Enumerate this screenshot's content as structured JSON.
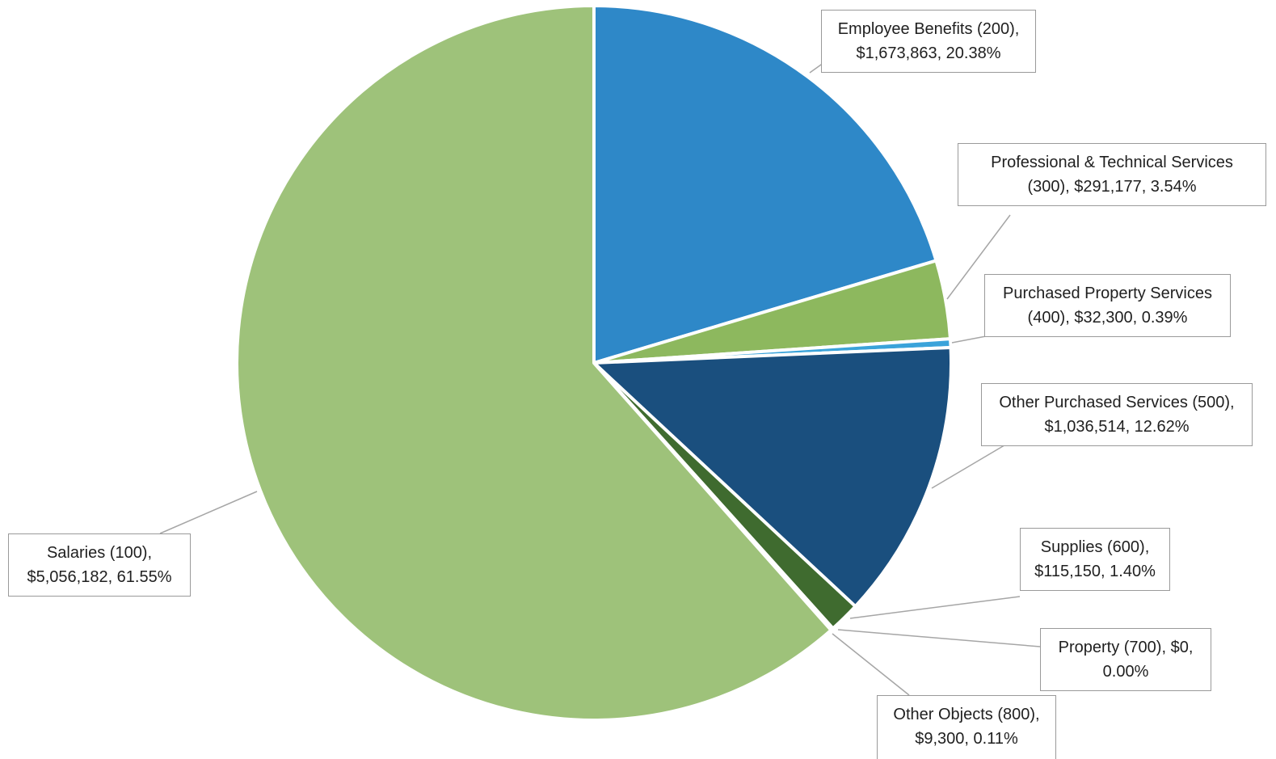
{
  "chart_data": {
    "type": "pie",
    "title": "",
    "slices": [
      {
        "label_line1": "Employee Benefits (200),",
        "label_line2": "$1,673,863, 20.38%",
        "value": 1673863,
        "percent": 20.38,
        "color": "#2e88c8"
      },
      {
        "label_line1": "Professional & Technical Services",
        "label_line2": "(300), $291,177, 3.54%",
        "value": 291177,
        "percent": 3.54,
        "color": "#8db85e"
      },
      {
        "label_line1": "Purchased Property Services",
        "label_line2": "(400), $32,300, 0.39%",
        "value": 32300,
        "percent": 0.39,
        "color": "#3aa3da"
      },
      {
        "label_line1": "Other Purchased Services (500),",
        "label_line2": "$1,036,514, 12.62%",
        "value": 1036514,
        "percent": 12.62,
        "color": "#1a4f7e"
      },
      {
        "label_line1": "Supplies (600),",
        "label_line2": "$115,150, 1.40%",
        "value": 115150,
        "percent": 1.4,
        "color": "#3f6b2f"
      },
      {
        "label_line1": "Property (700), $0,",
        "label_line2": "0.00%",
        "value": 0,
        "percent": 0.0,
        "color": "#2e88c8"
      },
      {
        "label_line1": "Other Objects (800),",
        "label_line2": "$9,300, 0.11%",
        "value": 9300,
        "percent": 0.11,
        "color": "#7fb0d8"
      },
      {
        "label_line1": "Salaries (100),",
        "label_line2": "$5,056,182, 61.55%",
        "value": 5056182,
        "percent": 61.55,
        "color": "#9ec27a"
      }
    ]
  }
}
